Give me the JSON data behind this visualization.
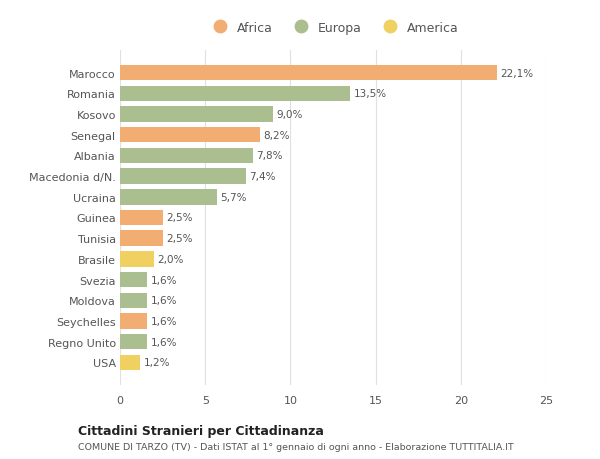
{
  "countries": [
    "Marocco",
    "Romania",
    "Kosovo",
    "Senegal",
    "Albania",
    "Macedonia d/N.",
    "Ucraina",
    "Guinea",
    "Tunisia",
    "Brasile",
    "Svezia",
    "Moldova",
    "Seychelles",
    "Regno Unito",
    "USA"
  ],
  "values": [
    22.1,
    13.5,
    9.0,
    8.2,
    7.8,
    7.4,
    5.7,
    2.5,
    2.5,
    2.0,
    1.6,
    1.6,
    1.6,
    1.6,
    1.2
  ],
  "labels": [
    "22,1%",
    "13,5%",
    "9,0%",
    "8,2%",
    "7,8%",
    "7,4%",
    "5,7%",
    "2,5%",
    "2,5%",
    "2,0%",
    "1,6%",
    "1,6%",
    "1,6%",
    "1,6%",
    "1,2%"
  ],
  "continents": [
    "Africa",
    "Europa",
    "Europa",
    "Africa",
    "Europa",
    "Europa",
    "Europa",
    "Africa",
    "Africa",
    "America",
    "Europa",
    "Europa",
    "Africa",
    "Europa",
    "America"
  ],
  "colors": {
    "Africa": "#F2AE72",
    "Europa": "#ABBE8F",
    "America": "#F0D060"
  },
  "legend_labels": [
    "Africa",
    "Europa",
    "America"
  ],
  "legend_colors": [
    "#F2AE72",
    "#ABBE8F",
    "#F0D060"
  ],
  "title1": "Cittadini Stranieri per Cittadinanza",
  "title2": "COMUNE DI TARZO (TV) - Dati ISTAT al 1° gennaio di ogni anno - Elaborazione TUTTITALIA.IT",
  "xlim": [
    0,
    25
  ],
  "xticks": [
    0,
    5,
    10,
    15,
    20,
    25
  ],
  "background_color": "#ffffff",
  "grid_color": "#e0e0e0",
  "text_color": "#555555",
  "bar_height": 0.75
}
